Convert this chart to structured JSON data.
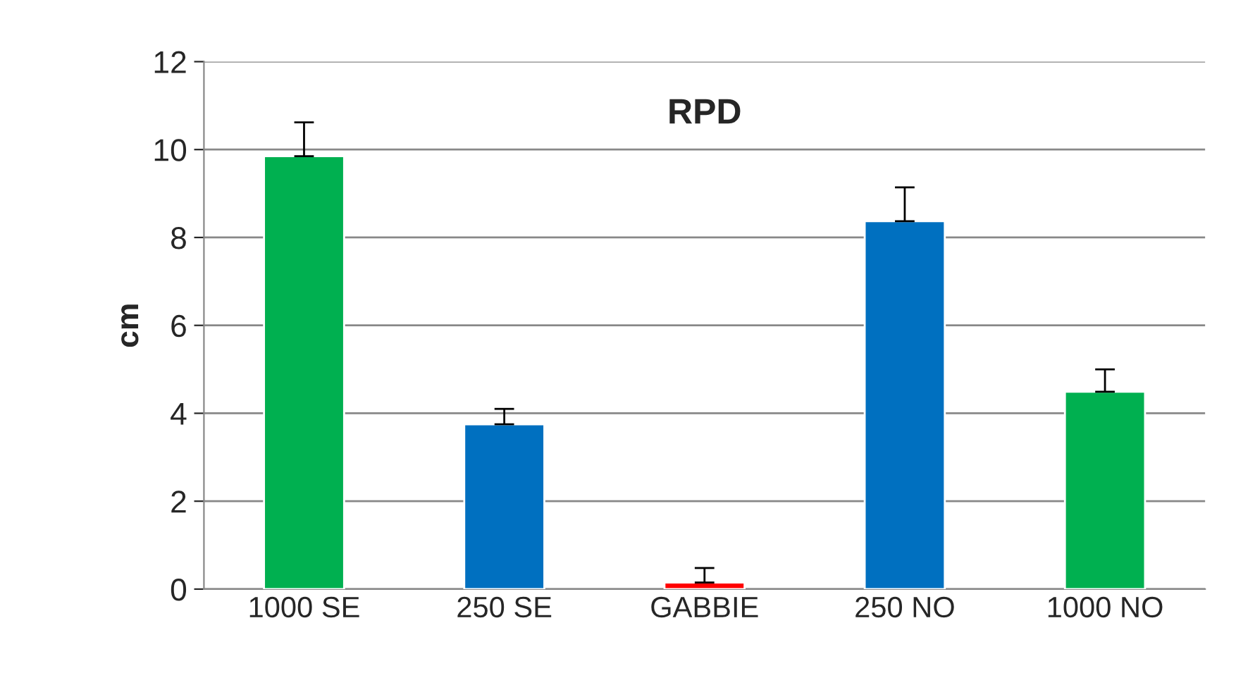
{
  "chart_data": {
    "type": "bar",
    "title": "RPD",
    "ylabel": "cm",
    "categories": [
      "1000 SE",
      "250 SE",
      "GABBIE",
      "250 NO",
      "1000 NO"
    ],
    "values": [
      9.85,
      3.75,
      0.15,
      8.37,
      4.49
    ],
    "colors": [
      "#00b050",
      "#0070c0",
      "#ff0000",
      "#0070c0",
      "#00b050"
    ],
    "errors": [
      [
        9.85,
        10.62
      ],
      [
        3.75,
        4.1
      ],
      [
        0.15,
        0.48
      ],
      [
        8.37,
        9.14
      ],
      [
        4.49,
        5.0
      ]
    ],
    "ylim": [
      0,
      12
    ],
    "yticks": [
      0,
      2,
      4,
      6,
      8,
      10,
      12
    ],
    "grid": "y",
    "legend": false
  }
}
